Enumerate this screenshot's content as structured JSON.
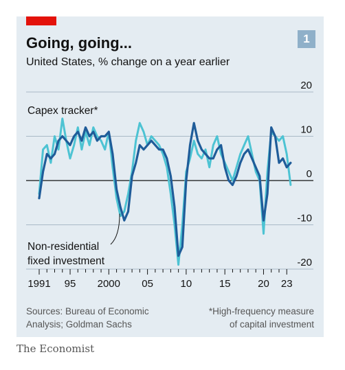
{
  "header": {
    "title": "Going, going...",
    "subtitle": "United States, % change on a year earlier",
    "badge": "1"
  },
  "footer": {
    "sources": "Sources: Bureau of Economic\nAnalysis; Goldman Sachs",
    "note": "*High-frequency measure\nof capital investment",
    "logo": "The Economist"
  },
  "colors": {
    "capex": "#4dc3d3",
    "investment": "#1f5c99",
    "accent": "#e3120b"
  },
  "chart_data": {
    "type": "line",
    "title": "Going, going...",
    "subtitle": "United States, % change on a year earlier",
    "xlim": [
      1991,
      2023.6
    ],
    "ylim": [
      -20,
      20
    ],
    "y_ticks": [
      20,
      10,
      0,
      -10,
      -20
    ],
    "y_tick_labels": [
      "20",
      "10",
      "0",
      "-10",
      "-20"
    ],
    "x_ticks": [
      1991,
      1995,
      2000,
      2005,
      2010,
      2015,
      2020,
      2023
    ],
    "x_tick_labels": [
      "1991",
      "95",
      "2000",
      "05",
      "10",
      "15",
      "20",
      "23"
    ],
    "grid": "horizontal",
    "series": [
      {
        "name": "Capex tracker*",
        "x": [
          1991.0,
          1991.5,
          1992.0,
          1992.5,
          1993.0,
          1993.5,
          1994.0,
          1994.5,
          1995.0,
          1995.5,
          1996.0,
          1996.5,
          1997.0,
          1997.5,
          1998.0,
          1998.5,
          1999.0,
          1999.5,
          2000.0,
          2000.5,
          2001.0,
          2001.5,
          2002.0,
          2002.5,
          2003.0,
          2003.5,
          2004.0,
          2004.5,
          2005.0,
          2005.5,
          2006.0,
          2006.5,
          2007.0,
          2007.5,
          2008.0,
          2008.5,
          2009.0,
          2009.5,
          2010.0,
          2010.5,
          2011.0,
          2011.5,
          2012.0,
          2012.5,
          2013.0,
          2013.5,
          2014.0,
          2014.5,
          2015.0,
          2015.5,
          2016.0,
          2016.5,
          2017.0,
          2017.5,
          2018.0,
          2018.5,
          2019.0,
          2019.5,
          2020.0,
          2020.5,
          2021.0,
          2021.5,
          2022.0,
          2022.5,
          2023.0,
          2023.5
        ],
        "y": [
          -3,
          7,
          8,
          4,
          10,
          7,
          14,
          9,
          5,
          8,
          12,
          7,
          11,
          8,
          12,
          10,
          9,
          7,
          11,
          3,
          -4,
          -8,
          -7,
          -3,
          2,
          9,
          13,
          11,
          8,
          10,
          9,
          8,
          6,
          3,
          -3,
          -10,
          -19,
          -10,
          2,
          5,
          9,
          6,
          5,
          7,
          3,
          8,
          10,
          6,
          4,
          2,
          0,
          3,
          6,
          8,
          10,
          6,
          2,
          0,
          -12,
          2,
          11,
          10,
          9,
          10,
          6,
          -1
        ]
      },
      {
        "name": "Non-residential fixed investment",
        "x": [
          1991.0,
          1991.5,
          1992.0,
          1992.5,
          1993.0,
          1993.5,
          1994.0,
          1994.5,
          1995.0,
          1995.5,
          1996.0,
          1996.5,
          1997.0,
          1997.5,
          1998.0,
          1998.5,
          1999.0,
          1999.5,
          2000.0,
          2000.5,
          2001.0,
          2001.5,
          2002.0,
          2002.5,
          2003.0,
          2003.5,
          2004.0,
          2004.5,
          2005.0,
          2005.5,
          2006.0,
          2006.5,
          2007.0,
          2007.5,
          2008.0,
          2008.5,
          2009.0,
          2009.5,
          2010.0,
          2010.5,
          2011.0,
          2011.5,
          2012.0,
          2012.5,
          2013.0,
          2013.5,
          2014.0,
          2014.5,
          2015.0,
          2015.5,
          2016.0,
          2016.5,
          2017.0,
          2017.5,
          2018.0,
          2018.5,
          2019.0,
          2019.5,
          2020.0,
          2020.5,
          2021.0,
          2021.5,
          2022.0,
          2022.5,
          2023.0,
          2023.5
        ],
        "y": [
          -4,
          2,
          6,
          5,
          6,
          9,
          10,
          9,
          8,
          10,
          11,
          9,
          12,
          10,
          11,
          9,
          10,
          10,
          11,
          6,
          -2,
          -6,
          -9,
          -7,
          1,
          4,
          8,
          7,
          8,
          9,
          8,
          7,
          7,
          5,
          1,
          -6,
          -17,
          -15,
          0,
          8,
          13,
          9,
          7,
          6,
          5,
          5,
          7,
          8,
          3,
          0,
          -1,
          1,
          4,
          6,
          7,
          5,
          3,
          1,
          -9,
          -3,
          12,
          10,
          4,
          5,
          3,
          4
        ]
      }
    ],
    "annotations": [
      {
        "text": "Capex tracker*"
      },
      {
        "text": "Non-residential"
      },
      {
        "text": "fixed investment"
      }
    ]
  }
}
